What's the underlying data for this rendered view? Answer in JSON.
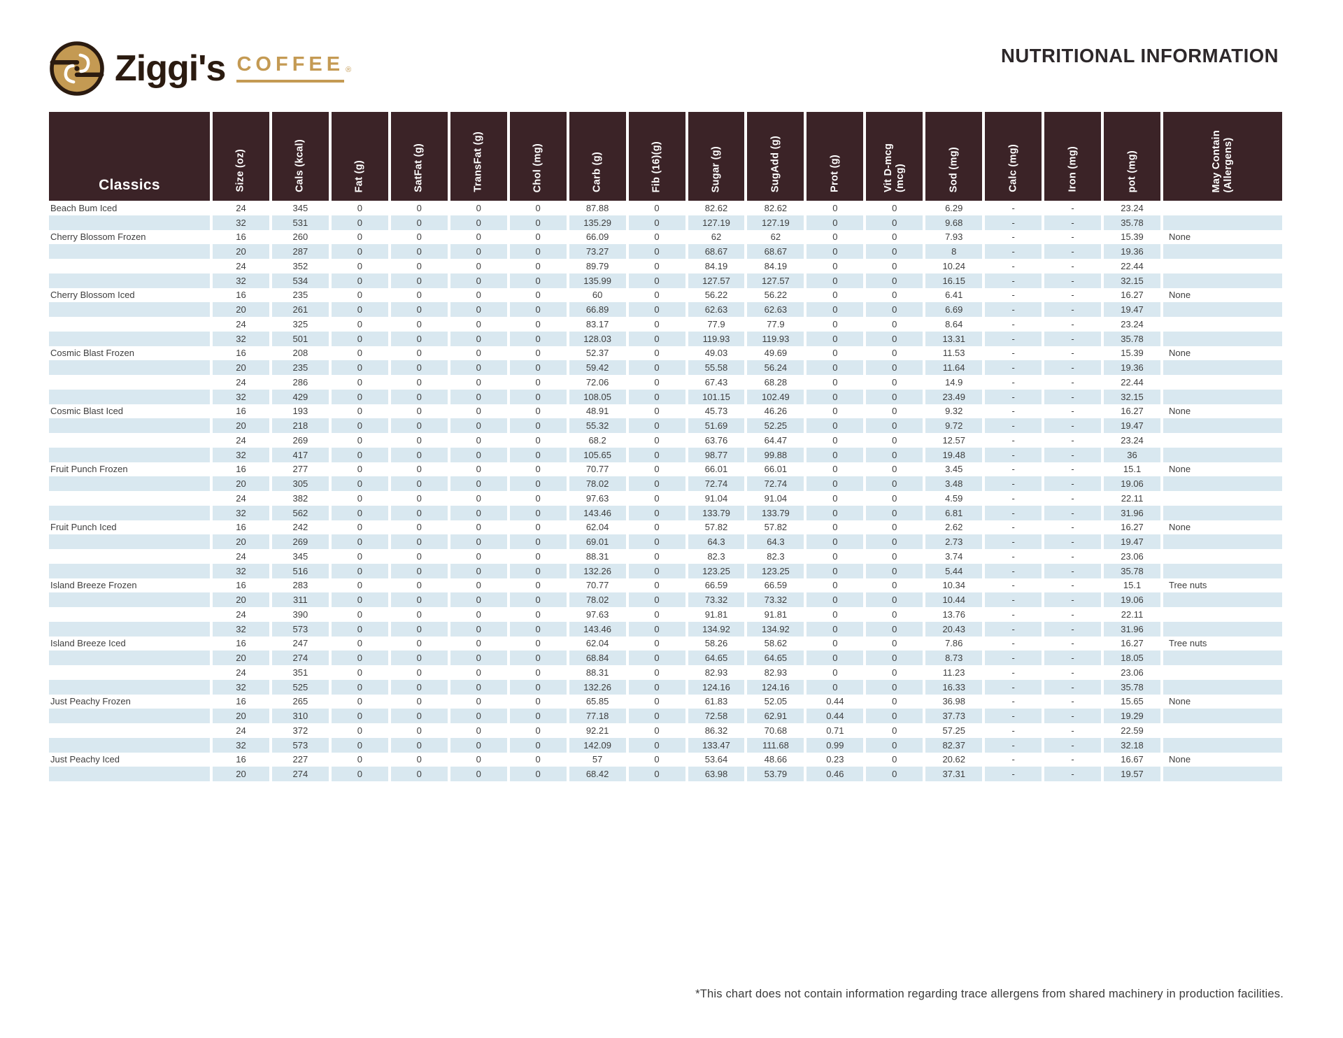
{
  "page": {
    "title": "NUTRITIONAL INFORMATION",
    "brand": {
      "name": "Ziggi's",
      "coffee": "COFFEE",
      "reg": "®"
    },
    "footnote": "*This chart does not contain information regarding trace allergens from shared machinery in production facilities."
  },
  "colors": {
    "header_bg": "#3b2327",
    "row_alt": "#d9e8f0",
    "gold": "#c49a53",
    "brand_dark": "#2b1b10"
  },
  "table": {
    "group_label": "Classics",
    "columns": [
      "Size (oz)",
      "Cals (kcal)",
      "Fat (g)",
      "SatFat (g)",
      "TransFat (g)",
      "Chol (mg)",
      "Carb (g)",
      "Fib (16)(g)",
      "Sugar (g)",
      "SugAdd (g)",
      "Prot (g)",
      "Vit D-mcg (mcg)",
      "Sod (mg)",
      "Calc (mg)",
      "Iron (mg)",
      "pot (mg)",
      "May Contain\n(Allergens)"
    ],
    "rows": [
      {
        "name": "Beach Bum Iced",
        "values": [
          "24",
          "345",
          "0",
          "0",
          "0",
          "0",
          "87.88",
          "0",
          "82.62",
          "82.62",
          "0",
          "0",
          "6.29",
          "-",
          "-",
          "23.24",
          ""
        ]
      },
      {
        "name": "",
        "values": [
          "32",
          "531",
          "0",
          "0",
          "0",
          "0",
          "135.29",
          "0",
          "127.19",
          "127.19",
          "0",
          "0",
          "9.68",
          "-",
          "-",
          "35.78",
          ""
        ]
      },
      {
        "name": "Cherry Blossom Frozen",
        "values": [
          "16",
          "260",
          "0",
          "0",
          "0",
          "0",
          "66.09",
          "0",
          "62",
          "62",
          "0",
          "0",
          "7.93",
          "-",
          "-",
          "15.39",
          "None"
        ]
      },
      {
        "name": "",
        "values": [
          "20",
          "287",
          "0",
          "0",
          "0",
          "0",
          "73.27",
          "0",
          "68.67",
          "68.67",
          "0",
          "0",
          "8",
          "-",
          "-",
          "19.36",
          ""
        ]
      },
      {
        "name": "",
        "values": [
          "24",
          "352",
          "0",
          "0",
          "0",
          "0",
          "89.79",
          "0",
          "84.19",
          "84.19",
          "0",
          "0",
          "10.24",
          "-",
          "-",
          "22.44",
          ""
        ]
      },
      {
        "name": "",
        "values": [
          "32",
          "534",
          "0",
          "0",
          "0",
          "0",
          "135.99",
          "0",
          "127.57",
          "127.57",
          "0",
          "0",
          "16.15",
          "-",
          "-",
          "32.15",
          ""
        ]
      },
      {
        "name": "Cherry Blossom Iced",
        "values": [
          "16",
          "235",
          "0",
          "0",
          "0",
          "0",
          "60",
          "0",
          "56.22",
          "56.22",
          "0",
          "0",
          "6.41",
          "-",
          "-",
          "16.27",
          "None"
        ]
      },
      {
        "name": "",
        "values": [
          "20",
          "261",
          "0",
          "0",
          "0",
          "0",
          "66.89",
          "0",
          "62.63",
          "62.63",
          "0",
          "0",
          "6.69",
          "-",
          "-",
          "19.47",
          ""
        ]
      },
      {
        "name": "",
        "values": [
          "24",
          "325",
          "0",
          "0",
          "0",
          "0",
          "83.17",
          "0",
          "77.9",
          "77.9",
          "0",
          "0",
          "8.64",
          "-",
          "-",
          "23.24",
          ""
        ]
      },
      {
        "name": "",
        "values": [
          "32",
          "501",
          "0",
          "0",
          "0",
          "0",
          "128.03",
          "0",
          "119.93",
          "119.93",
          "0",
          "0",
          "13.31",
          "-",
          "-",
          "35.78",
          ""
        ]
      },
      {
        "name": "Cosmic Blast Frozen",
        "values": [
          "16",
          "208",
          "0",
          "0",
          "0",
          "0",
          "52.37",
          "0",
          "49.03",
          "49.69",
          "0",
          "0",
          "11.53",
          "-",
          "-",
          "15.39",
          "None"
        ]
      },
      {
        "name": "",
        "values": [
          "20",
          "235",
          "0",
          "0",
          "0",
          "0",
          "59.42",
          "0",
          "55.58",
          "56.24",
          "0",
          "0",
          "11.64",
          "-",
          "-",
          "19.36",
          ""
        ]
      },
      {
        "name": "",
        "values": [
          "24",
          "286",
          "0",
          "0",
          "0",
          "0",
          "72.06",
          "0",
          "67.43",
          "68.28",
          "0",
          "0",
          "14.9",
          "-",
          "-",
          "22.44",
          ""
        ]
      },
      {
        "name": "",
        "values": [
          "32",
          "429",
          "0",
          "0",
          "0",
          "0",
          "108.05",
          "0",
          "101.15",
          "102.49",
          "0",
          "0",
          "23.49",
          "-",
          "-",
          "32.15",
          ""
        ]
      },
      {
        "name": "Cosmic Blast Iced",
        "values": [
          "16",
          "193",
          "0",
          "0",
          "0",
          "0",
          "48.91",
          "0",
          "45.73",
          "46.26",
          "0",
          "0",
          "9.32",
          "-",
          "-",
          "16.27",
          "None"
        ]
      },
      {
        "name": "",
        "values": [
          "20",
          "218",
          "0",
          "0",
          "0",
          "0",
          "55.32",
          "0",
          "51.69",
          "52.25",
          "0",
          "0",
          "9.72",
          "-",
          "-",
          "19.47",
          ""
        ]
      },
      {
        "name": "",
        "values": [
          "24",
          "269",
          "0",
          "0",
          "0",
          "0",
          "68.2",
          "0",
          "63.76",
          "64.47",
          "0",
          "0",
          "12.57",
          "-",
          "-",
          "23.24",
          ""
        ]
      },
      {
        "name": "",
        "values": [
          "32",
          "417",
          "0",
          "0",
          "0",
          "0",
          "105.65",
          "0",
          "98.77",
          "99.88",
          "0",
          "0",
          "19.48",
          "-",
          "-",
          "36",
          ""
        ]
      },
      {
        "name": "Fruit Punch Frozen",
        "values": [
          "16",
          "277",
          "0",
          "0",
          "0",
          "0",
          "70.77",
          "0",
          "66.01",
          "66.01",
          "0",
          "0",
          "3.45",
          "-",
          "-",
          "15.1",
          "None"
        ]
      },
      {
        "name": "",
        "values": [
          "20",
          "305",
          "0",
          "0",
          "0",
          "0",
          "78.02",
          "0",
          "72.74",
          "72.74",
          "0",
          "0",
          "3.48",
          "-",
          "-",
          "19.06",
          ""
        ]
      },
      {
        "name": "",
        "values": [
          "24",
          "382",
          "0",
          "0",
          "0",
          "0",
          "97.63",
          "0",
          "91.04",
          "91.04",
          "0",
          "0",
          "4.59",
          "-",
          "-",
          "22.11",
          ""
        ]
      },
      {
        "name": "",
        "values": [
          "32",
          "562",
          "0",
          "0",
          "0",
          "0",
          "143.46",
          "0",
          "133.79",
          "133.79",
          "0",
          "0",
          "6.81",
          "-",
          "-",
          "31.96",
          ""
        ]
      },
      {
        "name": "Fruit Punch Iced",
        "values": [
          "16",
          "242",
          "0",
          "0",
          "0",
          "0",
          "62.04",
          "0",
          "57.82",
          "57.82",
          "0",
          "0",
          "2.62",
          "-",
          "-",
          "16.27",
          "None"
        ]
      },
      {
        "name": "",
        "values": [
          "20",
          "269",
          "0",
          "0",
          "0",
          "0",
          "69.01",
          "0",
          "64.3",
          "64.3",
          "0",
          "0",
          "2.73",
          "-",
          "-",
          "19.47",
          ""
        ]
      },
      {
        "name": "",
        "values": [
          "24",
          "345",
          "0",
          "0",
          "0",
          "0",
          "88.31",
          "0",
          "82.3",
          "82.3",
          "0",
          "0",
          "3.74",
          "-",
          "-",
          "23.06",
          ""
        ]
      },
      {
        "name": "",
        "values": [
          "32",
          "516",
          "0",
          "0",
          "0",
          "0",
          "132.26",
          "0",
          "123.25",
          "123.25",
          "0",
          "0",
          "5.44",
          "-",
          "-",
          "35.78",
          ""
        ]
      },
      {
        "name": "Island Breeze Frozen",
        "values": [
          "16",
          "283",
          "0",
          "0",
          "0",
          "0",
          "70.77",
          "0",
          "66.59",
          "66.59",
          "0",
          "0",
          "10.34",
          "-",
          "-",
          "15.1",
          "Tree nuts"
        ]
      },
      {
        "name": "",
        "values": [
          "20",
          "311",
          "0",
          "0",
          "0",
          "0",
          "78.02",
          "0",
          "73.32",
          "73.32",
          "0",
          "0",
          "10.44",
          "-",
          "-",
          "19.06",
          ""
        ]
      },
      {
        "name": "",
        "values": [
          "24",
          "390",
          "0",
          "0",
          "0",
          "0",
          "97.63",
          "0",
          "91.81",
          "91.81",
          "0",
          "0",
          "13.76",
          "-",
          "-",
          "22.11",
          ""
        ]
      },
      {
        "name": "",
        "values": [
          "32",
          "573",
          "0",
          "0",
          "0",
          "0",
          "143.46",
          "0",
          "134.92",
          "134.92",
          "0",
          "0",
          "20.43",
          "-",
          "-",
          "31.96",
          ""
        ]
      },
      {
        "name": "Island Breeze Iced",
        "values": [
          "16",
          "247",
          "0",
          "0",
          "0",
          "0",
          "62.04",
          "0",
          "58.26",
          "58.62",
          "0",
          "0",
          "7.86",
          "-",
          "-",
          "16.27",
          "Tree nuts"
        ]
      },
      {
        "name": "",
        "values": [
          "20",
          "274",
          "0",
          "0",
          "0",
          "0",
          "68.84",
          "0",
          "64.65",
          "64.65",
          "0",
          "0",
          "8.73",
          "-",
          "-",
          "18.05",
          ""
        ]
      },
      {
        "name": "",
        "values": [
          "24",
          "351",
          "0",
          "0",
          "0",
          "0",
          "88.31",
          "0",
          "82.93",
          "82.93",
          "0",
          "0",
          "11.23",
          "-",
          "-",
          "23.06",
          ""
        ]
      },
      {
        "name": "",
        "values": [
          "32",
          "525",
          "0",
          "0",
          "0",
          "0",
          "132.26",
          "0",
          "124.16",
          "124.16",
          "0",
          "0",
          "16.33",
          "-",
          "-",
          "35.78",
          ""
        ]
      },
      {
        "name": "Just Peachy Frozen",
        "values": [
          "16",
          "265",
          "0",
          "0",
          "0",
          "0",
          "65.85",
          "0",
          "61.83",
          "52.05",
          "0.44",
          "0",
          "36.98",
          "-",
          "-",
          "15.65",
          "None"
        ]
      },
      {
        "name": "",
        "values": [
          "20",
          "310",
          "0",
          "0",
          "0",
          "0",
          "77.18",
          "0",
          "72.58",
          "62.91",
          "0.44",
          "0",
          "37.73",
          "-",
          "-",
          "19.29",
          ""
        ]
      },
      {
        "name": "",
        "values": [
          "24",
          "372",
          "0",
          "0",
          "0",
          "0",
          "92.21",
          "0",
          "86.32",
          "70.68",
          "0.71",
          "0",
          "57.25",
          "-",
          "-",
          "22.59",
          ""
        ]
      },
      {
        "name": "",
        "values": [
          "32",
          "573",
          "0",
          "0",
          "0",
          "0",
          "142.09",
          "0",
          "133.47",
          "111.68",
          "0.99",
          "0",
          "82.37",
          "-",
          "-",
          "32.18",
          ""
        ]
      },
      {
        "name": "Just Peachy Iced",
        "values": [
          "16",
          "227",
          "0",
          "0",
          "0",
          "0",
          "57",
          "0",
          "53.64",
          "48.66",
          "0.23",
          "0",
          "20.62",
          "-",
          "-",
          "16.67",
          "None"
        ]
      },
      {
        "name": "",
        "values": [
          "20",
          "274",
          "0",
          "0",
          "0",
          "0",
          "68.42",
          "0",
          "63.98",
          "53.79",
          "0.46",
          "0",
          "37.31",
          "-",
          "-",
          "19.57",
          ""
        ]
      }
    ]
  }
}
